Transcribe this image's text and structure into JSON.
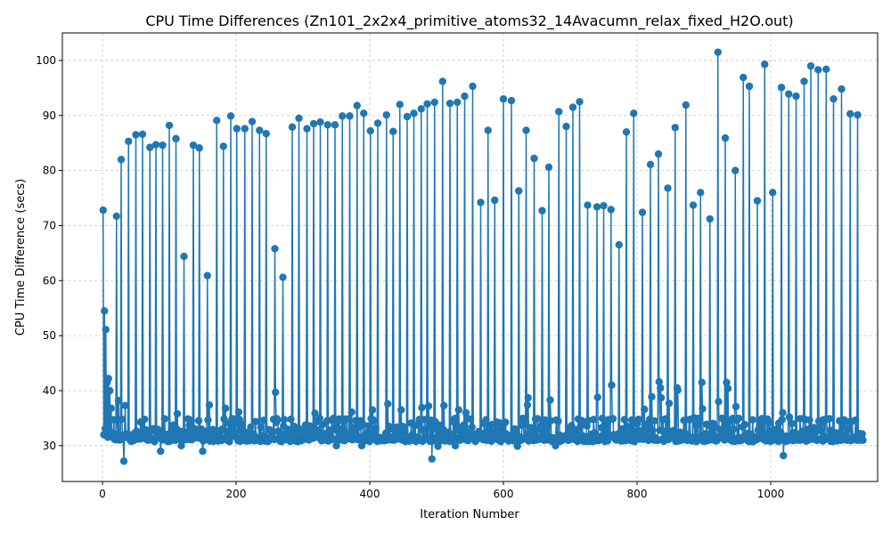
{
  "chart_data": {
    "type": "line",
    "title": "CPU Time Differences (Zn101_2x2x4_primitive_atoms32_14Avacumn_relax_fixed_H2O.out)",
    "xlabel": "Iteration Number",
    "ylabel": "CPU Time Difference (secs)",
    "xlim": [
      -60,
      1160
    ],
    "ylim": [
      23.5,
      105
    ],
    "x_ticks": [
      0,
      200,
      400,
      600,
      800,
      1000
    ],
    "y_ticks": [
      30,
      40,
      50,
      60,
      70,
      80,
      90,
      100
    ],
    "grid": true,
    "legend": "none",
    "color": "#1f77b4",
    "series": [
      {
        "marker": "circle",
        "x_start": 1,
        "baseline": 31.2,
        "spikes": [
          {
            "x": 1,
            "y": 72.8
          },
          {
            "x": 3,
            "y": 54.5
          },
          {
            "x": 5,
            "y": 51.1
          },
          {
            "x": 7,
            "y": 41.5
          },
          {
            "x": 9,
            "y": 42.2
          },
          {
            "x": 11,
            "y": 40.0
          },
          {
            "x": 13,
            "y": 36.8
          },
          {
            "x": 21,
            "y": 71.7
          },
          {
            "x": 24,
            "y": 38.2
          },
          {
            "x": 28,
            "y": 82.0
          },
          {
            "x": 32,
            "y": 27.2
          },
          {
            "x": 34,
            "y": 37.3
          },
          {
            "x": 39,
            "y": 85.3
          },
          {
            "x": 50,
            "y": 86.5
          },
          {
            "x": 60,
            "y": 86.6
          },
          {
            "x": 71,
            "y": 84.2
          },
          {
            "x": 80,
            "y": 84.7
          },
          {
            "x": 87,
            "y": 29.0
          },
          {
            "x": 90,
            "y": 84.6
          },
          {
            "x": 100,
            "y": 88.2
          },
          {
            "x": 110,
            "y": 85.8
          },
          {
            "x": 112,
            "y": 35.8
          },
          {
            "x": 118,
            "y": 30.0
          },
          {
            "x": 122,
            "y": 64.4
          },
          {
            "x": 136,
            "y": 84.6
          },
          {
            "x": 145,
            "y": 84.1
          },
          {
            "x": 150,
            "y": 29.0
          },
          {
            "x": 157,
            "y": 60.9
          },
          {
            "x": 160,
            "y": 37.4
          },
          {
            "x": 171,
            "y": 89.1
          },
          {
            "x": 181,
            "y": 84.4
          },
          {
            "x": 184,
            "y": 36.8
          },
          {
            "x": 192,
            "y": 89.9
          },
          {
            "x": 201,
            "y": 87.6
          },
          {
            "x": 204,
            "y": 36.1
          },
          {
            "x": 213,
            "y": 87.6
          },
          {
            "x": 224,
            "y": 88.9
          },
          {
            "x": 235,
            "y": 87.3
          },
          {
            "x": 245,
            "y": 86.7
          },
          {
            "x": 258,
            "y": 65.8
          },
          {
            "x": 259,
            "y": 39.7
          },
          {
            "x": 270,
            "y": 60.6
          },
          {
            "x": 284,
            "y": 87.9
          },
          {
            "x": 294,
            "y": 89.5
          },
          {
            "x": 306,
            "y": 87.6
          },
          {
            "x": 316,
            "y": 88.5
          },
          {
            "x": 318,
            "y": 35.9
          },
          {
            "x": 326,
            "y": 88.8
          },
          {
            "x": 337,
            "y": 88.3
          },
          {
            "x": 348,
            "y": 88.3
          },
          {
            "x": 350,
            "y": 30.0
          },
          {
            "x": 359,
            "y": 89.9
          },
          {
            "x": 370,
            "y": 89.9
          },
          {
            "x": 373,
            "y": 36.1
          },
          {
            "x": 381,
            "y": 91.8
          },
          {
            "x": 388,
            "y": 30.0
          },
          {
            "x": 391,
            "y": 90.4
          },
          {
            "x": 401,
            "y": 87.2
          },
          {
            "x": 404,
            "y": 36.5
          },
          {
            "x": 412,
            "y": 88.6
          },
          {
            "x": 425,
            "y": 90.1
          },
          {
            "x": 427,
            "y": 37.6
          },
          {
            "x": 435,
            "y": 87.1
          },
          {
            "x": 445,
            "y": 92.0
          },
          {
            "x": 447,
            "y": 36.5
          },
          {
            "x": 456,
            "y": 89.8
          },
          {
            "x": 466,
            "y": 90.4
          },
          {
            "x": 477,
            "y": 91.2
          },
          {
            "x": 478,
            "y": 36.9
          },
          {
            "x": 486,
            "y": 92.1
          },
          {
            "x": 488,
            "y": 37.2
          },
          {
            "x": 493,
            "y": 27.6
          },
          {
            "x": 497,
            "y": 92.4
          },
          {
            "x": 502,
            "y": 29.9
          },
          {
            "x": 509,
            "y": 96.2
          },
          {
            "x": 511,
            "y": 37.3
          },
          {
            "x": 520,
            "y": 92.2
          },
          {
            "x": 528,
            "y": 30.0
          },
          {
            "x": 531,
            "y": 92.4
          },
          {
            "x": 533,
            "y": 36.5
          },
          {
            "x": 542,
            "y": 93.5
          },
          {
            "x": 544,
            "y": 36.0
          },
          {
            "x": 554,
            "y": 95.3
          },
          {
            "x": 566,
            "y": 74.2
          },
          {
            "x": 577,
            "y": 87.3
          },
          {
            "x": 587,
            "y": 74.6
          },
          {
            "x": 600,
            "y": 93.0
          },
          {
            "x": 612,
            "y": 92.7
          },
          {
            "x": 621,
            "y": 29.9
          },
          {
            "x": 623,
            "y": 76.3
          },
          {
            "x": 634,
            "y": 87.3
          },
          {
            "x": 636,
            "y": 37.4
          },
          {
            "x": 637,
            "y": 38.7
          },
          {
            "x": 646,
            "y": 82.2
          },
          {
            "x": 658,
            "y": 72.7
          },
          {
            "x": 668,
            "y": 80.6
          },
          {
            "x": 670,
            "y": 38.3
          },
          {
            "x": 678,
            "y": 30.0
          },
          {
            "x": 683,
            "y": 90.7
          },
          {
            "x": 694,
            "y": 88.0
          },
          {
            "x": 704,
            "y": 91.5
          },
          {
            "x": 714,
            "y": 92.5
          },
          {
            "x": 726,
            "y": 73.7
          },
          {
            "x": 740,
            "y": 73.4
          },
          {
            "x": 741,
            "y": 38.8
          },
          {
            "x": 750,
            "y": 73.6
          },
          {
            "x": 761,
            "y": 72.9
          },
          {
            "x": 762,
            "y": 41.0
          },
          {
            "x": 773,
            "y": 66.5
          },
          {
            "x": 784,
            "y": 87.0
          },
          {
            "x": 795,
            "y": 90.4
          },
          {
            "x": 808,
            "y": 72.4
          },
          {
            "x": 811,
            "y": 36.6
          },
          {
            "x": 820,
            "y": 81.1
          },
          {
            "x": 822,
            "y": 38.9
          },
          {
            "x": 832,
            "y": 83.0
          },
          {
            "x": 833,
            "y": 41.6
          },
          {
            "x": 835,
            "y": 40.5
          },
          {
            "x": 836,
            "y": 38.7
          },
          {
            "x": 846,
            "y": 76.8
          },
          {
            "x": 848,
            "y": 37.7
          },
          {
            "x": 857,
            "y": 87.8
          },
          {
            "x": 860,
            "y": 40.5
          },
          {
            "x": 861,
            "y": 40.1
          },
          {
            "x": 873,
            "y": 91.9
          },
          {
            "x": 884,
            "y": 73.7
          },
          {
            "x": 885,
            "y": 35.1
          },
          {
            "x": 895,
            "y": 76.0
          },
          {
            "x": 897,
            "y": 41.5
          },
          {
            "x": 898,
            "y": 36.7
          },
          {
            "x": 909,
            "y": 71.2
          },
          {
            "x": 921,
            "y": 101.5
          },
          {
            "x": 922,
            "y": 38.0
          },
          {
            "x": 932,
            "y": 85.9
          },
          {
            "x": 934,
            "y": 41.5
          },
          {
            "x": 936,
            "y": 40.4
          },
          {
            "x": 947,
            "y": 80.0
          },
          {
            "x": 948,
            "y": 37.1
          },
          {
            "x": 959,
            "y": 96.9
          },
          {
            "x": 968,
            "y": 95.3
          },
          {
            "x": 980,
            "y": 74.5
          },
          {
            "x": 991,
            "y": 99.3
          },
          {
            "x": 1003,
            "y": 76.0
          },
          {
            "x": 1016,
            "y": 95.1
          },
          {
            "x": 1018,
            "y": 36.0
          },
          {
            "x": 1019,
            "y": 28.2
          },
          {
            "x": 1027,
            "y": 93.9
          },
          {
            "x": 1028,
            "y": 35.2
          },
          {
            "x": 1038,
            "y": 93.5
          },
          {
            "x": 1050,
            "y": 96.2
          },
          {
            "x": 1060,
            "y": 99.0
          },
          {
            "x": 1071,
            "y": 98.3
          },
          {
            "x": 1083,
            "y": 98.4
          },
          {
            "x": 1094,
            "y": 93.0
          },
          {
            "x": 1106,
            "y": 94.8
          },
          {
            "x": 1119,
            "y": 90.3
          },
          {
            "x": 1130,
            "y": 90.1
          },
          {
            "x": 1133,
            "y": 31.0
          },
          {
            "x": 1136,
            "y": 31.4
          },
          {
            "x": 1138,
            "y": 31.0
          }
        ]
      }
    ]
  }
}
